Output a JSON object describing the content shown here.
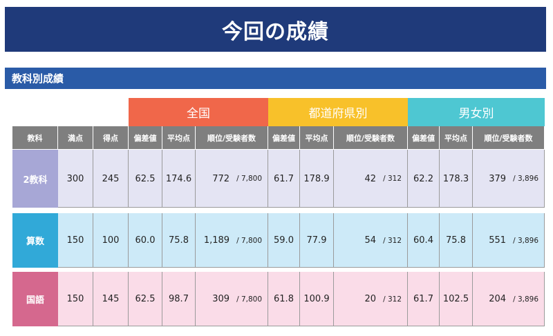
{
  "title": "今回の成績",
  "section": "教科別成績",
  "groups": [
    {
      "label": "全国",
      "color": "#f0674a"
    },
    {
      "label": "都道府県別",
      "color": "#f8c12a"
    },
    {
      "label": "男女別",
      "color": "#4ec7d2"
    }
  ],
  "headers": {
    "subject": "教科",
    "full": "満点",
    "score": "得点",
    "deviation": "偏差値",
    "average": "平均点",
    "rank": "順位/受験者数"
  },
  "rows": [
    {
      "subject": "2教科",
      "label_color": "#a7a7d6",
      "row_color": "#e4e4f3",
      "full": "300",
      "score": "245",
      "national": {
        "deviation": "62.5",
        "average": "174.6",
        "rank": "772",
        "total": "/ 7,800"
      },
      "prefecture": {
        "deviation": "61.7",
        "average": "178.9",
        "rank": "42",
        "total": "/ 312"
      },
      "gender": {
        "deviation": "62.2",
        "average": "178.3",
        "rank": "379",
        "total": "/ 3,896"
      }
    },
    {
      "subject": "算数",
      "label_color": "#31a9d8",
      "row_color": "#cdeaf8",
      "full": "150",
      "score": "100",
      "national": {
        "deviation": "60.0",
        "average": "75.8",
        "rank": "1,189",
        "total": "/ 7,800"
      },
      "prefecture": {
        "deviation": "59.0",
        "average": "77.9",
        "rank": "54",
        "total": "/ 312"
      },
      "gender": {
        "deviation": "60.4",
        "average": "75.8",
        "rank": "551",
        "total": "/ 3,896"
      }
    },
    {
      "subject": "国語",
      "label_color": "#d5688e",
      "row_color": "#fadce8",
      "full": "150",
      "score": "145",
      "national": {
        "deviation": "62.5",
        "average": "98.7",
        "rank": "309",
        "total": "/ 7,800"
      },
      "prefecture": {
        "deviation": "61.8",
        "average": "100.9",
        "rank": "20",
        "total": "/ 312"
      },
      "gender": {
        "deviation": "61.7",
        "average": "102.5",
        "rank": "204",
        "total": "/ 3,896"
      }
    }
  ]
}
